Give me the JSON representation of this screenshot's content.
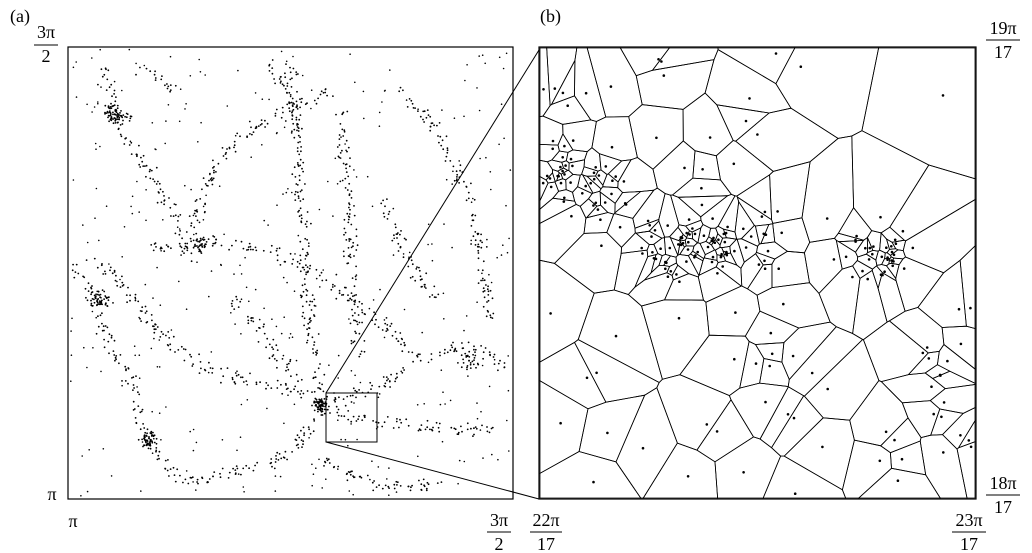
{
  "panels": {
    "a": {
      "label": "(a)",
      "ytick_top": {
        "num": "3π",
        "den": "2"
      },
      "ytick_bottom": "π",
      "xtick_left": "π",
      "xtick_right": {
        "num": "3π",
        "den": "2"
      }
    },
    "b": {
      "label": "(b)",
      "ytick_top": {
        "num": "19π",
        "den": "17"
      },
      "ytick_bottom": {
        "num": "18π",
        "den": "17"
      },
      "xtick_left": {
        "num": "22π",
        "den": "17"
      },
      "xtick_right": {
        "num": "23π",
        "den": "17"
      }
    }
  },
  "colors": {
    "ink": "#000000",
    "background": "#ffffff"
  }
}
